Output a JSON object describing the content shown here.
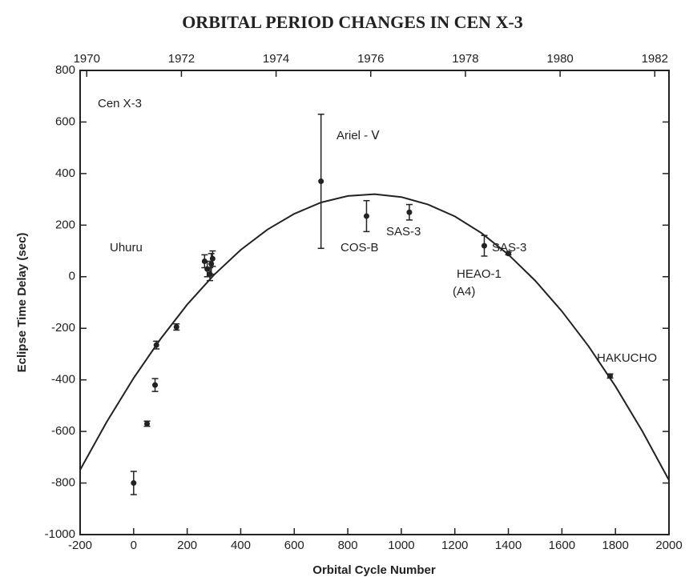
{
  "chart_data": {
    "type": "scatter",
    "title": "ORBITAL PERIOD CHANGES IN CEN X-3",
    "xlabel": "Orbital Cycle Number",
    "ylabel": "Eclipse Time Delay (sec)",
    "xlim": [
      -200,
      2000
    ],
    "ylim": [
      -1000,
      800
    ],
    "xticks": [
      -200,
      0,
      200,
      400,
      600,
      800,
      1000,
      1200,
      1400,
      1600,
      1800,
      2000
    ],
    "yticks": [
      -1000,
      -800,
      -600,
      -400,
      -200,
      0,
      200,
      400,
      600,
      800
    ],
    "x2lim": [
      1969.86,
      1982.3
    ],
    "x2ticks": [
      1970,
      1972,
      1974,
      1976,
      1978,
      1980,
      1982
    ],
    "color": "#222222",
    "points": {
      "x": [
        0,
        50,
        80,
        85,
        160,
        265,
        275,
        285,
        290,
        295,
        700,
        870,
        1030,
        1310,
        1400,
        1780
      ],
      "values": [
        -800,
        -570,
        -420,
        -265,
        -195,
        60,
        30,
        10,
        50,
        70,
        370,
        235,
        250,
        120,
        90,
        -385
      ],
      "errors": [
        45,
        10,
        25,
        15,
        12,
        25,
        30,
        25,
        40,
        30,
        260,
        60,
        30,
        40,
        5,
        8
      ]
    },
    "curve": {
      "x": [
        -200,
        -100,
        0,
        100,
        200,
        300,
        400,
        500,
        600,
        700,
        800,
        900,
        1000,
        1100,
        1200,
        1300,
        1400,
        1500,
        1600,
        1700,
        1800,
        1900,
        2000
      ],
      "y": [
        -749,
        -562,
        -393,
        -242,
        -108,
        7,
        104,
        183,
        244,
        288,
        313,
        320,
        309,
        280,
        234,
        169,
        86,
        -15,
        -134,
        -270,
        -425,
        -598,
        -789
      ]
    },
    "annotations": [
      "Cen X-3",
      "Ariel - Ⅴ",
      "COS-B",
      "SAS-3",
      "Uhuru",
      "HEAO-1",
      "(A4)",
      "SAS-3",
      "HAKUCHO"
    ]
  }
}
